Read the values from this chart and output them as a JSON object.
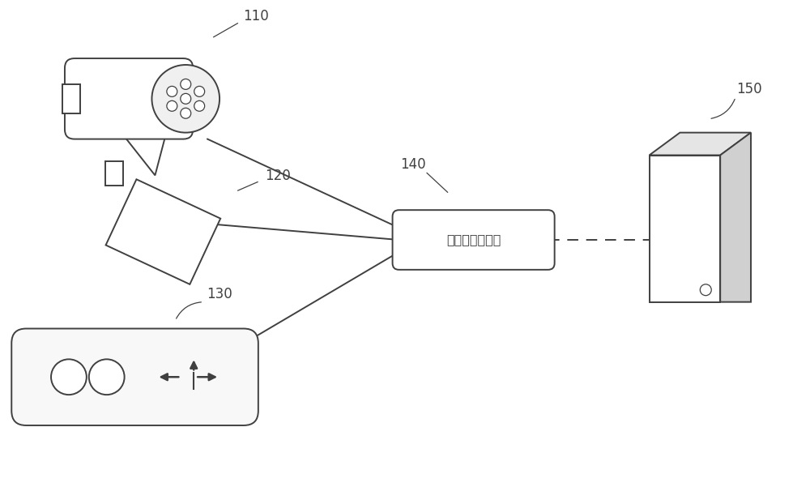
{
  "bg_color": "#ffffff",
  "line_color": "#404040",
  "label_110": "110",
  "label_120": "120",
  "label_130": "130",
  "label_140": "140",
  "label_150": "150",
  "center_box_text": "交通灯控制装置",
  "figsize": [
    10.0,
    6.01
  ],
  "dpi": 100
}
